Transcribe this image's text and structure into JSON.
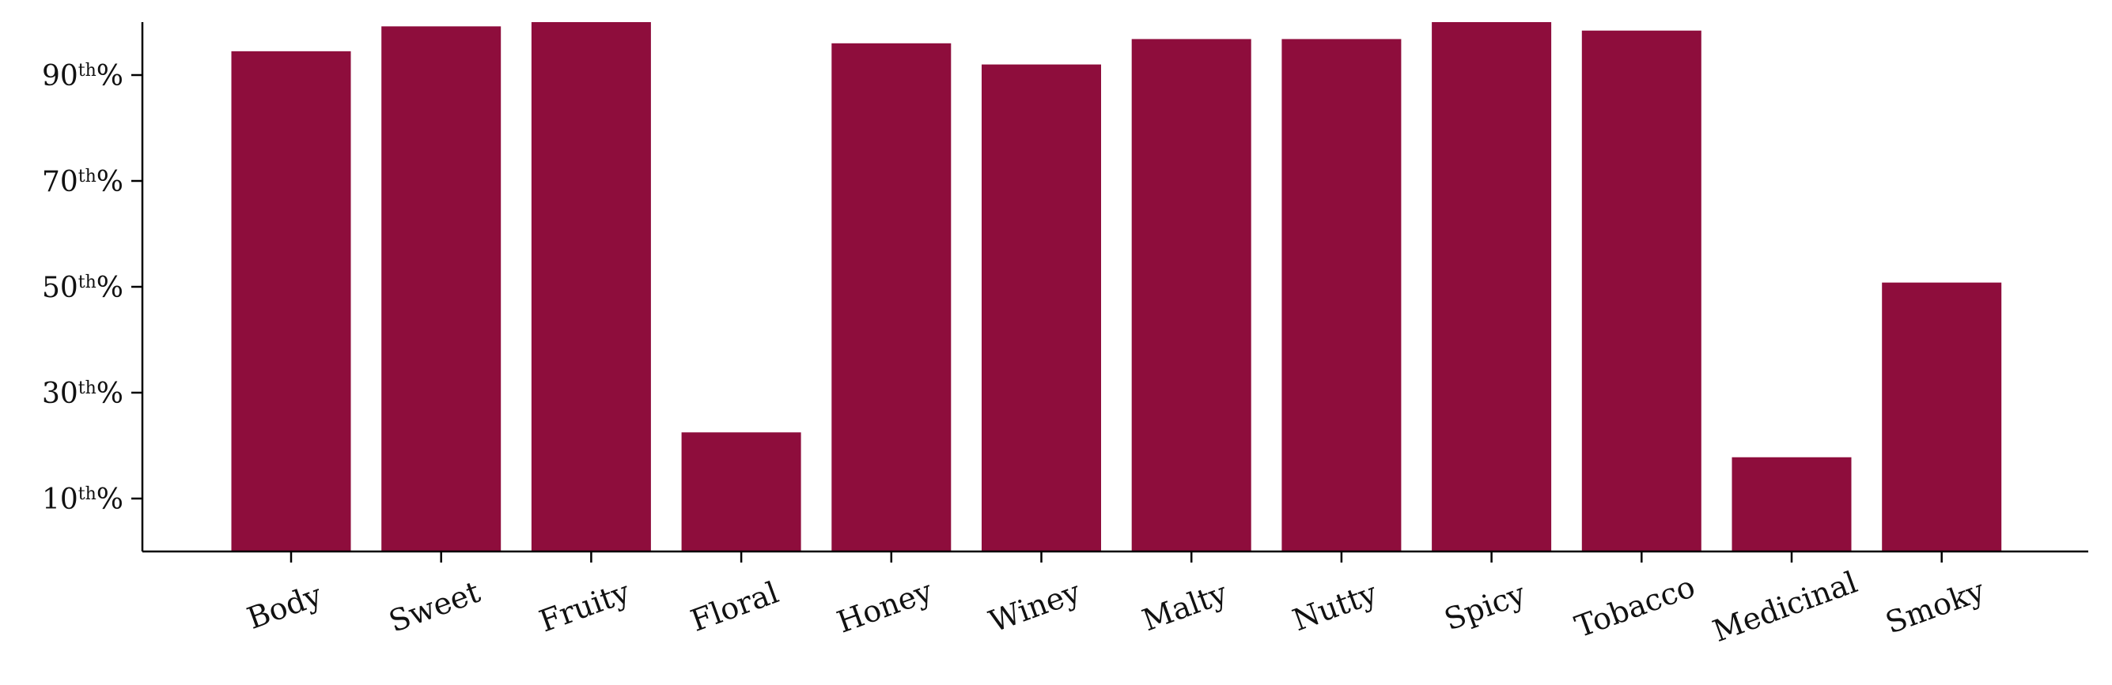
{
  "chart_data": {
    "type": "bar",
    "title": "",
    "xlabel": "",
    "ylabel": "",
    "categories": [
      "Body",
      "Sweet",
      "Fruity",
      "Floral",
      "Honey",
      "Winey",
      "Malty",
      "Nutty",
      "Spicy",
      "Tobacco",
      "Medicinal",
      "Smoky"
    ],
    "values": [
      94.5,
      99.2,
      100,
      22.5,
      96.0,
      92.0,
      96.8,
      96.8,
      100,
      98.4,
      17.8,
      50.8
    ],
    "yticks": [
      10,
      30,
      50,
      70,
      90
    ],
    "ytick_labels": [
      {
        "num": "10",
        "sup": "th",
        "pct": "%"
      },
      {
        "num": "30",
        "sup": "th",
        "pct": "%"
      },
      {
        "num": "50",
        "sup": "th",
        "pct": "%"
      },
      {
        "num": "70",
        "sup": "th",
        "pct": "%"
      },
      {
        "num": "90",
        "sup": "th",
        "pct": "%"
      }
    ],
    "ylim": [
      0,
      100
    ],
    "grid": false,
    "bar_color": "#8e0d3c"
  }
}
